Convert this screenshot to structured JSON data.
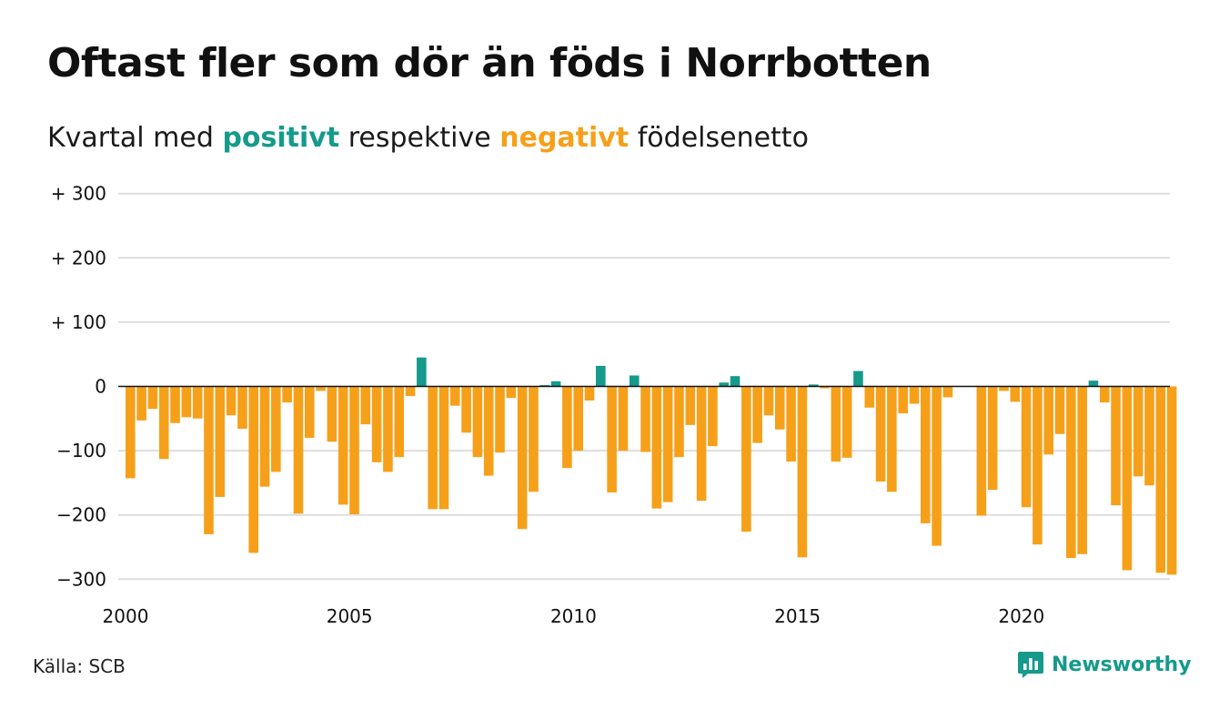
{
  "header": {
    "title": "Oftast fler som dör än föds i Norrbotten",
    "subtitle_prefix": "Kvartal med",
    "subtitle_positive": "positivt",
    "subtitle_middle": "respektive",
    "subtitle_negative": "negativt",
    "subtitle_suffix": "födelsenetto"
  },
  "footer": {
    "source": "Källa: SCB",
    "brand": "Newsworthy",
    "brand_icon": "newsworthy-logo-icon"
  },
  "colors": {
    "positive": "#159a8c",
    "negative": "#f6a01a",
    "grid": "#dddddd"
  },
  "chart_data": {
    "type": "bar",
    "title": "Oftast fler som dör än föds i Norrbotten",
    "subtitle": "Kvartal med positivt respektive negativt födelsenetto",
    "xlabel": "",
    "ylabel": "",
    "ylim": [
      -300,
      300
    ],
    "yticks": [
      300,
      200,
      100,
      0,
      -100,
      -200,
      -300
    ],
    "ytick_labels": [
      "+ 300",
      "+ 200",
      "+ 100",
      "0",
      "−100",
      "−200",
      "−300"
    ],
    "xticks": [
      2000,
      2005,
      2010,
      2015,
      2020
    ],
    "x_start": "2000 Q1",
    "grid": true,
    "legend": "none",
    "values": [
      -143,
      -53,
      -35,
      -113,
      -57,
      -48,
      -50,
      -230,
      -172,
      -45,
      -66,
      -259,
      -156,
      -133,
      -25,
      -198,
      -80,
      -7,
      -86,
      -184,
      -199,
      -59,
      -118,
      -133,
      -110,
      -15,
      45,
      -191,
      -191,
      -30,
      -72,
      -110,
      -139,
      -103,
      -18,
      -222,
      -164,
      2,
      8,
      -127,
      -100,
      -22,
      32,
      -165,
      -100,
      17,
      -102,
      -190,
      -180,
      -110,
      -60,
      -178,
      -93,
      6,
      16,
      -226,
      -88,
      -45,
      -67,
      -117,
      -266,
      3,
      -3,
      -117,
      -111,
      24,
      -33,
      -148,
      -164,
      -42,
      -27,
      -213,
      -248,
      -17,
      0,
      0,
      -201,
      -161,
      -7,
      -24,
      -188,
      -246,
      -106,
      -74,
      -267,
      -261,
      9,
      -25,
      -185,
      -286,
      -140,
      -154,
      -290,
      -293
    ]
  }
}
